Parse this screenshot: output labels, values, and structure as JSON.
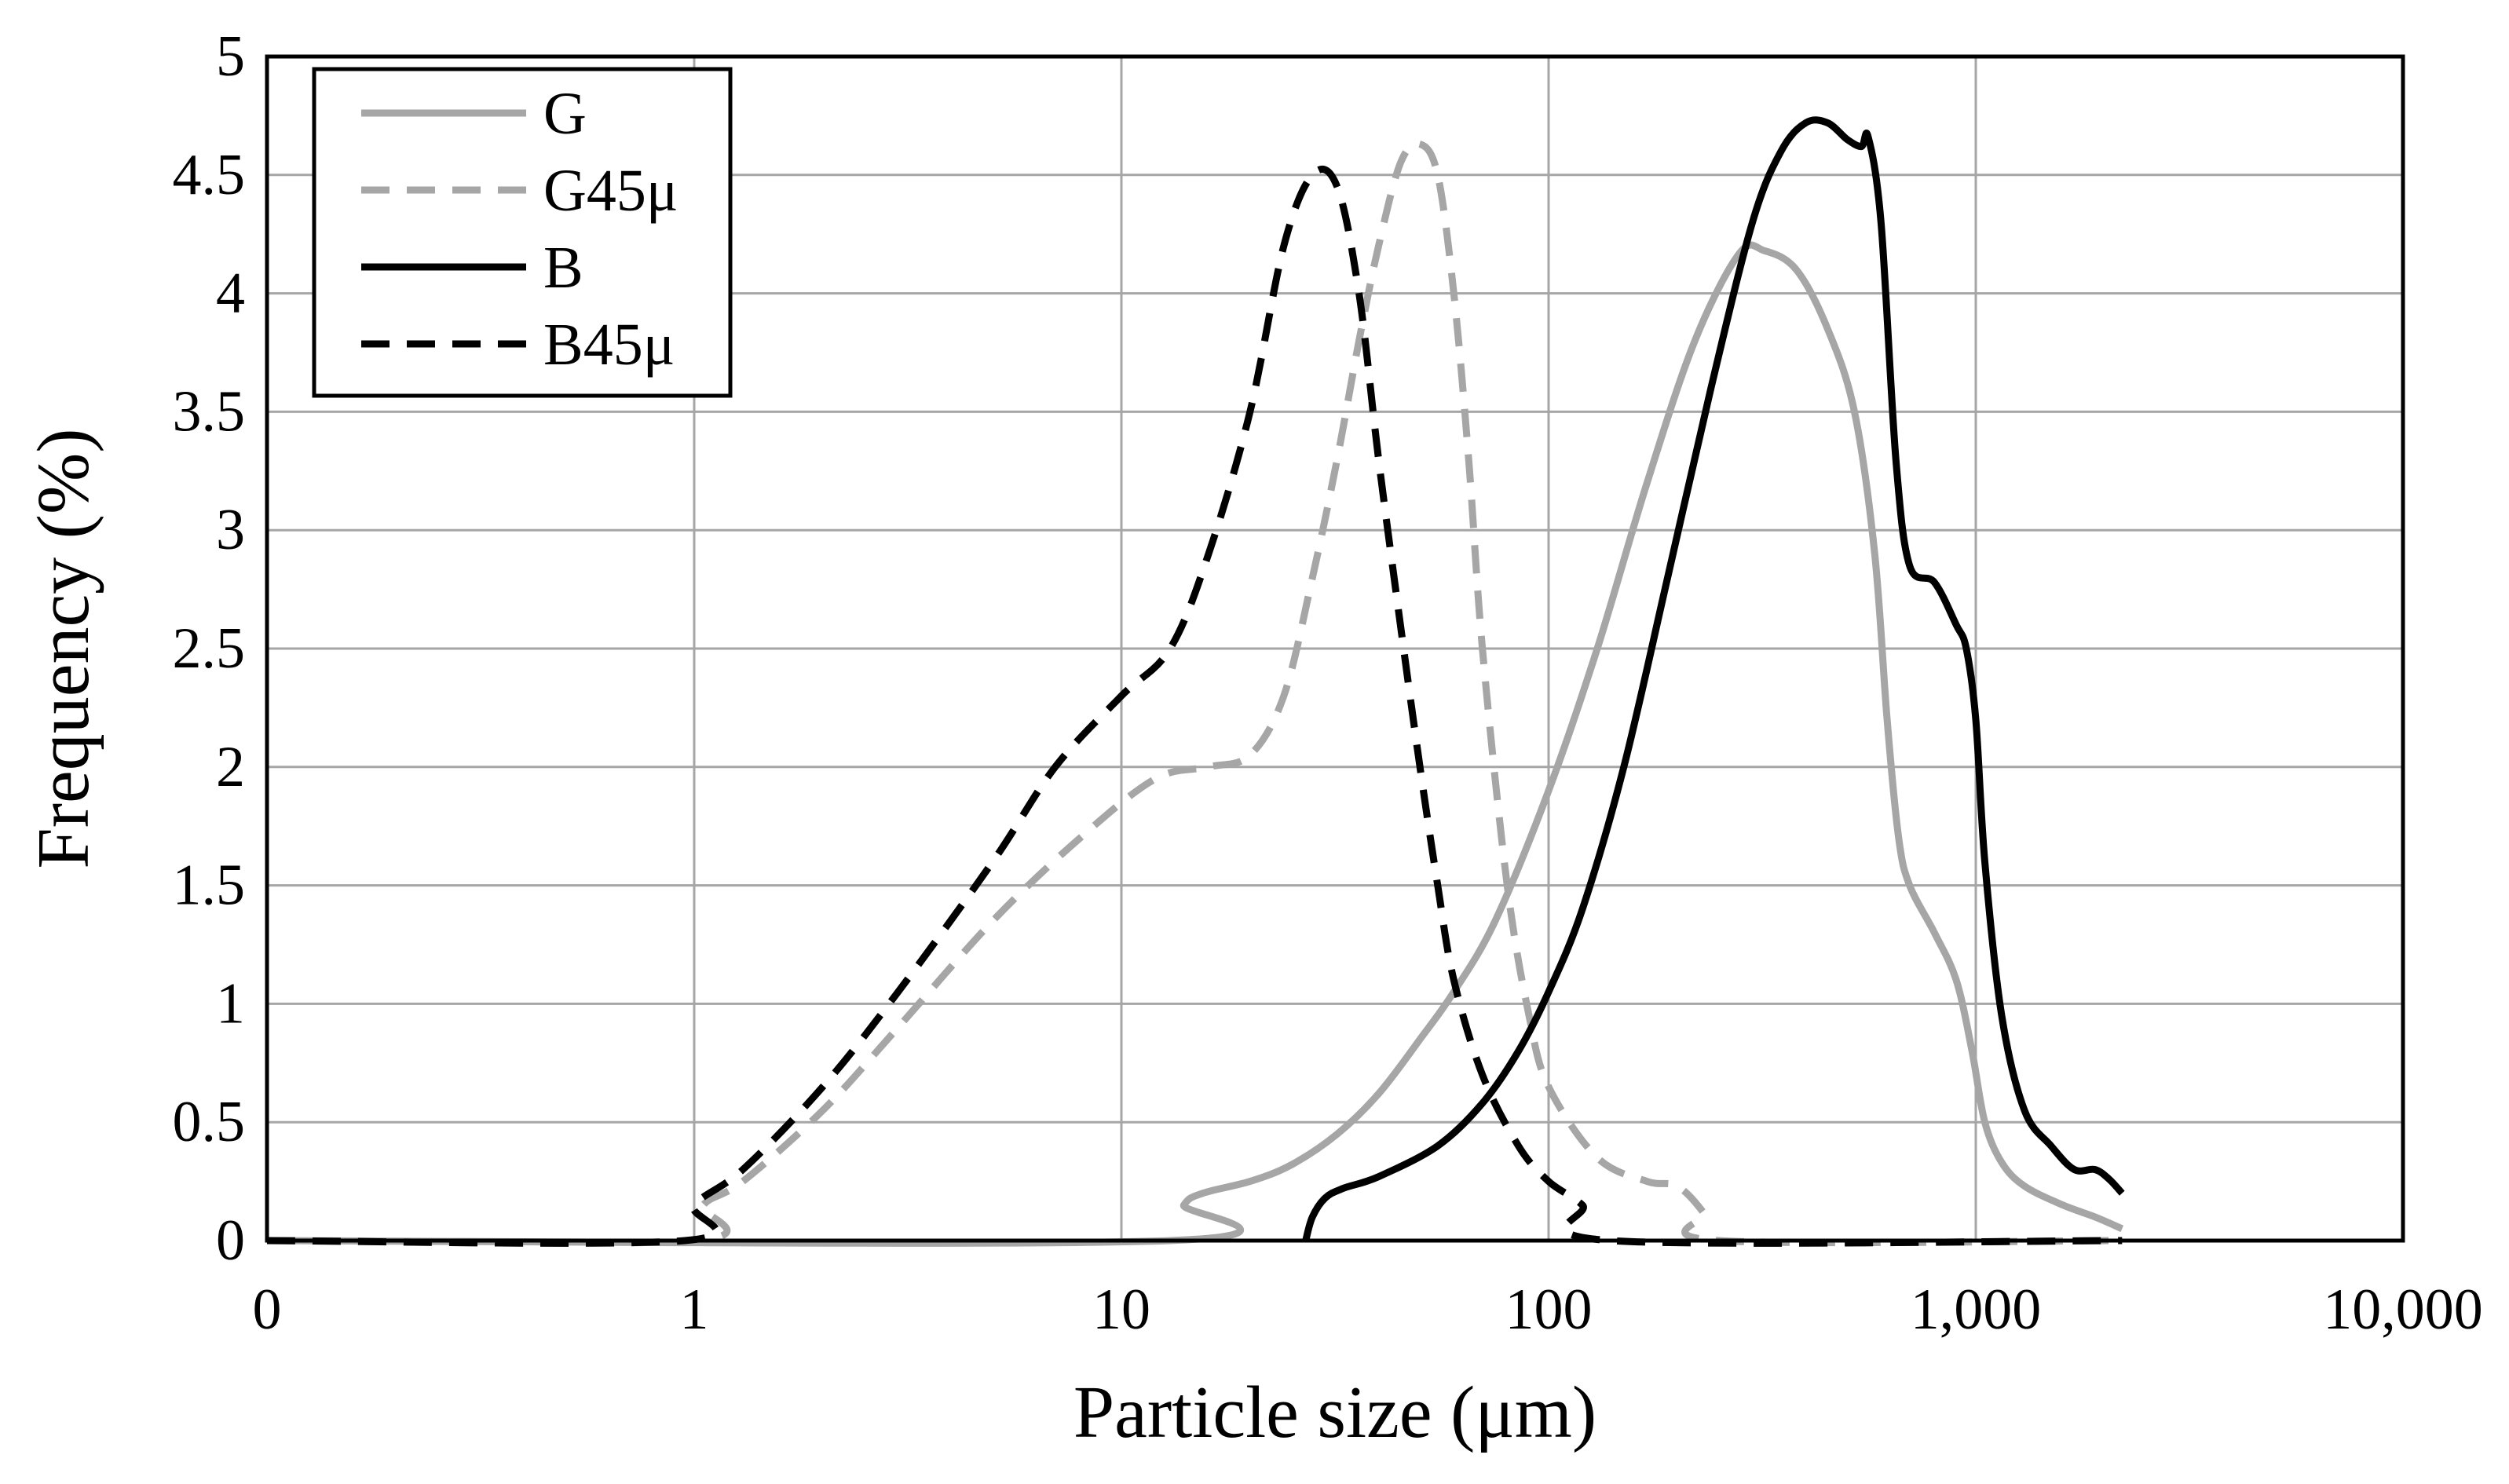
{
  "chart_data": {
    "type": "line",
    "title": "",
    "xlabel": "Particle size (μm)",
    "ylabel": "Frequency (%)",
    "xscale": "log",
    "xlim": [
      0.1,
      10000
    ],
    "ylim": [
      0,
      5
    ],
    "grid": true,
    "legend_position": "top-left",
    "x_ticks": [
      {
        "value": 0.1,
        "label": "0"
      },
      {
        "value": 1,
        "label": "1"
      },
      {
        "value": 10,
        "label": "10"
      },
      {
        "value": 100,
        "label": "100"
      },
      {
        "value": 1000,
        "label": "1,000"
      },
      {
        "value": 10000,
        "label": "10,000"
      }
    ],
    "y_ticks": [
      {
        "value": 0,
        "label": "0"
      },
      {
        "value": 0.5,
        "label": "0.5"
      },
      {
        "value": 1,
        "label": "1"
      },
      {
        "value": 1.5,
        "label": "1.5"
      },
      {
        "value": 2,
        "label": "2"
      },
      {
        "value": 2.5,
        "label": "2.5"
      },
      {
        "value": 3,
        "label": "3"
      },
      {
        "value": 3.5,
        "label": "3.5"
      },
      {
        "value": 4,
        "label": "4"
      },
      {
        "value": 4.5,
        "label": "4.5"
      },
      {
        "value": 5,
        "label": "5"
      }
    ],
    "series": [
      {
        "name": "G",
        "color": "#a6a6a6",
        "dash": "solid",
        "points": [
          [
            0.1,
            0
          ],
          [
            13,
            0
          ],
          [
            14,
            0.15
          ],
          [
            15.5,
            0.2
          ],
          [
            20,
            0.25
          ],
          [
            25,
            0.32
          ],
          [
            32,
            0.45
          ],
          [
            40,
            0.62
          ],
          [
            50,
            0.85
          ],
          [
            60,
            1.05
          ],
          [
            75,
            1.35
          ],
          [
            100,
            1.9
          ],
          [
            130,
            2.5
          ],
          [
            170,
            3.2
          ],
          [
            220,
            3.8
          ],
          [
            280,
            4.17
          ],
          [
            320,
            4.18
          ],
          [
            380,
            4.1
          ],
          [
            450,
            3.85
          ],
          [
            520,
            3.5
          ],
          [
            580,
            2.9
          ],
          [
            620,
            2.2
          ],
          [
            660,
            1.7
          ],
          [
            700,
            1.5
          ],
          [
            800,
            1.3
          ],
          [
            900,
            1.1
          ],
          [
            980,
            0.8
          ],
          [
            1050,
            0.5
          ],
          [
            1150,
            0.33
          ],
          [
            1300,
            0.23
          ],
          [
            1600,
            0.15
          ],
          [
            1900,
            0.1
          ],
          [
            2200,
            0.05
          ]
        ]
      },
      {
        "name": "G45μ",
        "color": "#a6a6a6",
        "dash": "dashed",
        "points": [
          [
            0.1,
            0
          ],
          [
            1.0,
            0
          ],
          [
            1.05,
            0.15
          ],
          [
            1.3,
            0.25
          ],
          [
            2,
            0.55
          ],
          [
            3,
            0.9
          ],
          [
            5,
            1.35
          ],
          [
            8,
            1.7
          ],
          [
            12,
            1.95
          ],
          [
            16,
            2.0
          ],
          [
            20,
            2.05
          ],
          [
            24,
            2.3
          ],
          [
            28,
            2.8
          ],
          [
            32,
            3.3
          ],
          [
            36,
            3.8
          ],
          [
            40,
            4.2
          ],
          [
            45,
            4.55
          ],
          [
            50,
            4.63
          ],
          [
            55,
            4.5
          ],
          [
            60,
            4.0
          ],
          [
            65,
            3.3
          ],
          [
            70,
            2.5
          ],
          [
            80,
            1.5
          ],
          [
            90,
            0.95
          ],
          [
            100,
            0.65
          ],
          [
            130,
            0.35
          ],
          [
            170,
            0.25
          ],
          [
            200,
            0.23
          ],
          [
            230,
            0.12
          ],
          [
            250,
            0
          ],
          [
            2200,
            0
          ]
        ]
      },
      {
        "name": "B",
        "color": "#000000",
        "dash": "solid",
        "points": [
          [
            27,
            0
          ],
          [
            28,
            0.1
          ],
          [
            30,
            0.18
          ],
          [
            33,
            0.22
          ],
          [
            40,
            0.27
          ],
          [
            55,
            0.4
          ],
          [
            70,
            0.58
          ],
          [
            85,
            0.8
          ],
          [
            100,
            1.05
          ],
          [
            120,
            1.4
          ],
          [
            150,
            2.0
          ],
          [
            190,
            2.8
          ],
          [
            240,
            3.6
          ],
          [
            300,
            4.3
          ],
          [
            350,
            4.6
          ],
          [
            400,
            4.72
          ],
          [
            450,
            4.72
          ],
          [
            500,
            4.65
          ],
          [
            540,
            4.62
          ],
          [
            560,
            4.66
          ],
          [
            600,
            4.3
          ],
          [
            650,
            3.3
          ],
          [
            700,
            2.85
          ],
          [
            800,
            2.78
          ],
          [
            900,
            2.6
          ],
          [
            950,
            2.5
          ],
          [
            1000,
            2.2
          ],
          [
            1050,
            1.6
          ],
          [
            1150,
            0.95
          ],
          [
            1300,
            0.55
          ],
          [
            1500,
            0.4
          ],
          [
            1700,
            0.3
          ],
          [
            1900,
            0.3
          ],
          [
            2050,
            0.26
          ],
          [
            2200,
            0.2
          ]
        ]
      },
      {
        "name": "B45μ",
        "color": "#000000",
        "dash": "dashed",
        "points": [
          [
            0.1,
            0
          ],
          [
            0.95,
            0
          ],
          [
            1.0,
            0.15
          ],
          [
            1.3,
            0.3
          ],
          [
            2,
            0.65
          ],
          [
            3,
            1.05
          ],
          [
            5,
            1.6
          ],
          [
            7,
            2.0
          ],
          [
            10,
            2.3
          ],
          [
            13,
            2.5
          ],
          [
            16,
            2.9
          ],
          [
            20,
            3.5
          ],
          [
            24,
            4.2
          ],
          [
            28,
            4.5
          ],
          [
            32,
            4.45
          ],
          [
            36,
            4.0
          ],
          [
            40,
            3.3
          ],
          [
            45,
            2.6
          ],
          [
            50,
            2.0
          ],
          [
            55,
            1.5
          ],
          [
            60,
            1.1
          ],
          [
            70,
            0.7
          ],
          [
            85,
            0.4
          ],
          [
            100,
            0.25
          ],
          [
            120,
            0.15
          ],
          [
            140,
            0
          ],
          [
            2200,
            0
          ]
        ]
      }
    ]
  }
}
